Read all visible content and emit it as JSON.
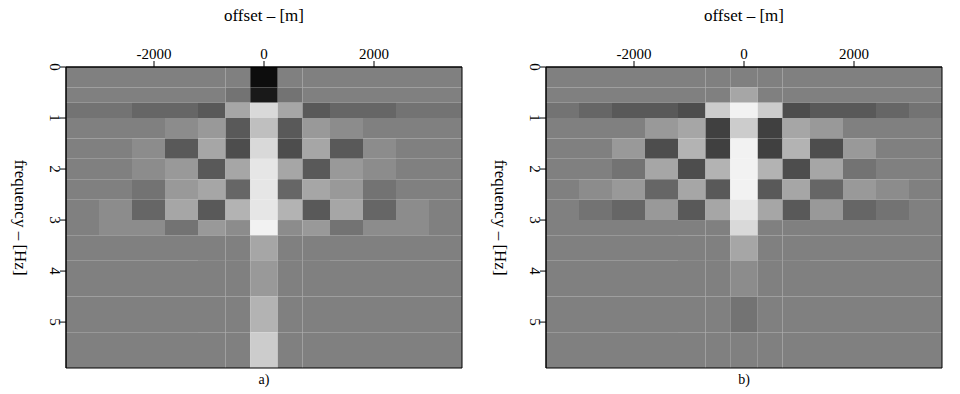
{
  "chart_data": [
    {
      "type": "heatmap",
      "title": "a)",
      "x_label": "offset – [m]",
      "y_label": "frequency – [Hz]",
      "xlim": [
        -3600,
        3600
      ],
      "xticks": [
        -2000,
        0,
        2000
      ],
      "ylim": [
        0,
        5.9
      ],
      "yticks": [
        0,
        1,
        2,
        3,
        4,
        5
      ],
      "zlim": [
        -1,
        1
      ],
      "x_bins": [
        -3600,
        -3000,
        -2400,
        -1800,
        -1200,
        -700,
        -250,
        250,
        700,
        1200,
        1800,
        2400,
        3000,
        3600
      ],
      "y_bins": [
        0,
        0.4,
        0.7,
        1,
        1.4,
        1.8,
        2.2,
        2.6,
        3,
        3.3,
        3.8,
        4.5,
        5.2,
        5.9
      ],
      "cells": [
        [
          0,
          0,
          0,
          0,
          0,
          0,
          -0.9,
          0,
          0,
          0,
          0,
          0,
          0
        ],
        [
          0,
          0,
          0,
          0,
          0,
          -0.1,
          -0.8,
          -0.1,
          0,
          0,
          0,
          0,
          0
        ],
        [
          -0.1,
          -0.1,
          -0.2,
          -0.2,
          -0.3,
          0.3,
          0.7,
          0.3,
          -0.3,
          -0.2,
          -0.2,
          -0.1,
          -0.1
        ],
        [
          0,
          0,
          0,
          0.1,
          0.2,
          -0.3,
          0.5,
          -0.3,
          0.2,
          0.1,
          0,
          0,
          0
        ],
        [
          0,
          0,
          0.1,
          -0.3,
          0.3,
          -0.4,
          0.7,
          -0.4,
          0.3,
          -0.3,
          0.1,
          0,
          0
        ],
        [
          0,
          0,
          0.1,
          0.2,
          -0.3,
          0.3,
          0.8,
          0.3,
          -0.3,
          0.2,
          0.1,
          0,
          0
        ],
        [
          0,
          0,
          -0.1,
          0.2,
          0.3,
          -0.2,
          0.8,
          -0.2,
          0.3,
          0.2,
          -0.1,
          0,
          0
        ],
        [
          0,
          0.1,
          -0.2,
          0.3,
          -0.3,
          0.4,
          0.8,
          0.4,
          -0.3,
          0.3,
          -0.2,
          0.1,
          0
        ],
        [
          0,
          0.1,
          0.1,
          -0.1,
          0.2,
          0.1,
          0.9,
          0.1,
          0.2,
          -0.1,
          0.1,
          0.1,
          0
        ],
        [
          0,
          0,
          0,
          0,
          0,
          0,
          0.3,
          0,
          0,
          0,
          0,
          0,
          0
        ],
        [
          0,
          0,
          0,
          0,
          0,
          0,
          0.2,
          0,
          0,
          0,
          0,
          0,
          0
        ],
        [
          0,
          0,
          0,
          0,
          0,
          0,
          0.4,
          0,
          0,
          0,
          0,
          0,
          0
        ],
        [
          0,
          0,
          0,
          0,
          0,
          0,
          0.6,
          0,
          0,
          0,
          0,
          0,
          0
        ]
      ]
    },
    {
      "type": "heatmap",
      "title": "b)",
      "x_label": "offset – [m]",
      "y_label": "frequency – [Hz]",
      "xlim": [
        -3600,
        3600
      ],
      "xticks": [
        -2000,
        0,
        2000
      ],
      "ylim": [
        0,
        5.9
      ],
      "yticks": [
        0,
        1,
        2,
        3,
        4,
        5
      ],
      "zlim": [
        -1,
        1
      ],
      "x_bins": [
        -3600,
        -3000,
        -2400,
        -1800,
        -1200,
        -700,
        -250,
        250,
        700,
        1200,
        1800,
        2400,
        3000,
        3600
      ],
      "y_bins": [
        0,
        0.4,
        0.7,
        1,
        1.4,
        1.8,
        2.2,
        2.6,
        3,
        3.3,
        3.8,
        4.5,
        5.2,
        5.9
      ],
      "cells": [
        [
          0,
          0,
          0,
          0,
          0,
          0,
          0,
          0,
          0,
          0,
          0,
          0,
          0
        ],
        [
          0,
          0,
          0,
          0,
          0,
          0,
          0.3,
          0,
          0,
          0,
          0,
          0,
          0
        ],
        [
          -0.1,
          -0.2,
          -0.3,
          -0.3,
          -0.4,
          0.6,
          0.9,
          0.6,
          -0.4,
          -0.3,
          -0.3,
          -0.2,
          -0.1
        ],
        [
          0,
          0,
          0,
          0.2,
          0.3,
          -0.5,
          0.6,
          -0.5,
          0.3,
          0.2,
          0,
          0,
          0
        ],
        [
          0,
          0,
          0.2,
          -0.4,
          0.4,
          -0.5,
          0.9,
          -0.5,
          0.4,
          -0.4,
          0.2,
          0,
          0
        ],
        [
          0,
          0,
          -0.1,
          0.3,
          -0.4,
          0.4,
          0.9,
          0.4,
          -0.4,
          0.3,
          -0.1,
          0,
          0
        ],
        [
          0,
          0.1,
          0.2,
          -0.2,
          0.3,
          -0.3,
          0.9,
          -0.3,
          0.3,
          -0.2,
          0.2,
          0.1,
          0
        ],
        [
          0,
          -0.1,
          -0.2,
          0.2,
          -0.3,
          0.3,
          0.8,
          0.3,
          -0.3,
          0.2,
          -0.2,
          -0.1,
          0
        ],
        [
          0,
          0,
          0,
          0,
          0,
          0,
          0.7,
          0,
          0,
          0,
          0,
          0,
          0
        ],
        [
          0,
          0,
          0,
          0,
          0,
          0,
          0.3,
          0,
          0,
          0,
          0,
          0,
          0
        ],
        [
          0,
          0,
          0,
          0,
          0,
          0,
          0.1,
          0,
          0,
          0,
          0,
          0,
          0
        ],
        [
          0,
          0,
          0,
          0,
          0,
          0,
          -0.1,
          0,
          0,
          0,
          0,
          0,
          0
        ],
        [
          0,
          0,
          0,
          0,
          0,
          0,
          0,
          0,
          0,
          0,
          0,
          0,
          0
        ]
      ]
    }
  ]
}
